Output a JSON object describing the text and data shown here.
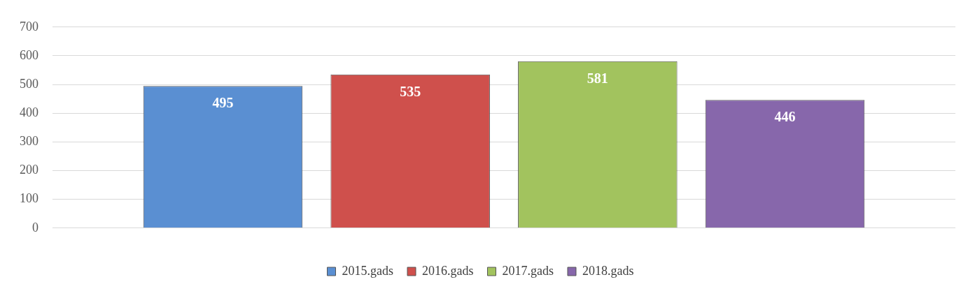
{
  "chart_data": {
    "type": "bar",
    "categories": [
      null
    ],
    "series": [
      {
        "name": "2015.gads",
        "color": "#5a8fd2",
        "values": [
          495
        ]
      },
      {
        "name": "2016.gads",
        "color": "#cf504c",
        "values": [
          535
        ]
      },
      {
        "name": "2017.gads",
        "color": "#a2c35e",
        "values": [
          581
        ]
      },
      {
        "name": "2018.gads",
        "color": "#8767ab",
        "values": [
          446
        ]
      }
    ],
    "ylim": [
      0,
      700
    ],
    "yticks": [
      0,
      100,
      200,
      300,
      400,
      500,
      600,
      700
    ],
    "grid": "y",
    "legend": "bottom",
    "data_labels": true
  }
}
